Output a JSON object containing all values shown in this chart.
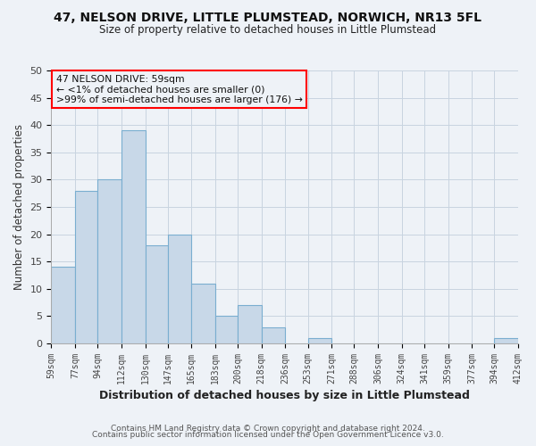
{
  "title": "47, NELSON DRIVE, LITTLE PLUMSTEAD, NORWICH, NR13 5FL",
  "subtitle": "Size of property relative to detached houses in Little Plumstead",
  "xlabel": "Distribution of detached houses by size in Little Plumstead",
  "ylabel": "Number of detached properties",
  "bin_edges": [
    59,
    77,
    94,
    112,
    130,
    147,
    165,
    183,
    200,
    218,
    236,
    253,
    271,
    288,
    306,
    324,
    341,
    359,
    377,
    394,
    412
  ],
  "bin_counts": [
    14,
    28,
    30,
    39,
    18,
    20,
    11,
    5,
    7,
    3,
    0,
    1,
    0,
    0,
    0,
    0,
    0,
    0,
    0,
    1
  ],
  "bar_color": "#c8d8e8",
  "bar_edge_color": "#7aaed0",
  "annotation_line1": "47 NELSON DRIVE: 59sqm",
  "annotation_line2": "← <1% of detached houses are smaller (0)",
  "annotation_line3": ">99% of semi-detached houses are larger (176) →",
  "annotation_box_color": "red",
  "ylim": [
    0,
    50
  ],
  "yticks": [
    0,
    5,
    10,
    15,
    20,
    25,
    30,
    35,
    40,
    45,
    50
  ],
  "tick_labels": [
    "59sqm",
    "77sqm",
    "94sqm",
    "112sqm",
    "130sqm",
    "147sqm",
    "165sqm",
    "183sqm",
    "200sqm",
    "218sqm",
    "236sqm",
    "253sqm",
    "271sqm",
    "288sqm",
    "306sqm",
    "324sqm",
    "341sqm",
    "359sqm",
    "377sqm",
    "394sqm",
    "412sqm"
  ],
  "footer_line1": "Contains HM Land Registry data © Crown copyright and database right 2024.",
  "footer_line2": "Contains public sector information licensed under the Open Government Licence v3.0.",
  "background_color": "#eef2f7",
  "plot_bg_color": "#eef2f7",
  "grid_color": "#c8d4e0",
  "title_fontsize": 10,
  "subtitle_fontsize": 8.5
}
